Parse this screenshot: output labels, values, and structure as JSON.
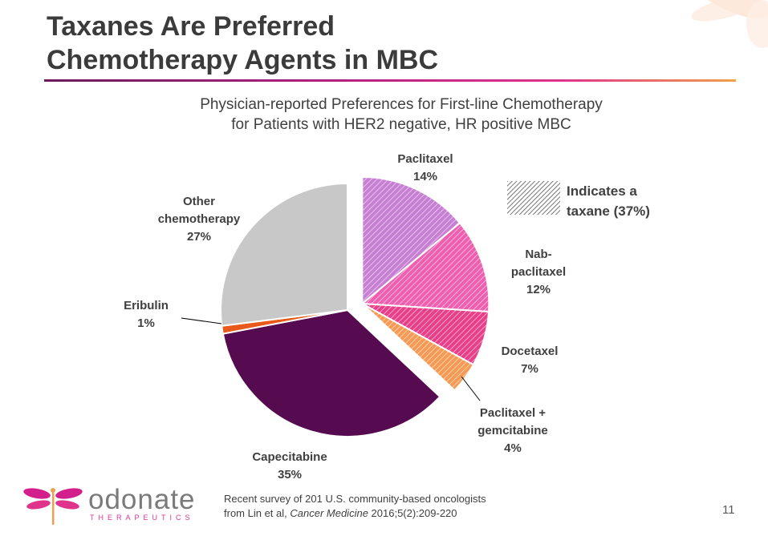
{
  "slide": {
    "title_line1": "Taxanes Are Preferred",
    "title_line2": "Chemotherapy Agents in MBC",
    "page_number": "11"
  },
  "chart_data": {
    "type": "pie",
    "title_line1": "Physician-reported Preferences for First-line Chemotherapy",
    "title_line2": "for Patients with HER2 negative, HR positive MBC",
    "slices": [
      {
        "label_lines": [
          "Paclitaxel",
          "14%"
        ],
        "value": 14,
        "taxane": true,
        "color": "#c77fd3"
      },
      {
        "label_lines": [
          "Nab-",
          "paclitaxel",
          "12%"
        ],
        "value": 12,
        "taxane": true,
        "color": "#ef5fb0"
      },
      {
        "label_lines": [
          "Docetaxel",
          "7%"
        ],
        "value": 7,
        "taxane": true,
        "color": "#e83f8a"
      },
      {
        "label_lines": [
          "Paclitaxel +",
          "gemcitabine",
          "4%"
        ],
        "value": 4,
        "taxane": true,
        "color": "#f59a55"
      },
      {
        "label_lines": [
          "Capecitabine",
          "35%"
        ],
        "value": 35,
        "taxane": false,
        "color": "#560b50"
      },
      {
        "label_lines": [
          "Eribulin",
          "1%"
        ],
        "value": 1,
        "taxane": false,
        "color": "#e8591a"
      },
      {
        "label_lines": [
          "Other",
          "chemotherapy",
          "27%"
        ],
        "value": 27,
        "taxane": false,
        "color": "#c8c8c8"
      }
    ],
    "legend": {
      "line1": "Indicates a",
      "line2": "taxane (37%)"
    }
  },
  "footnote": {
    "line1": "Recent survey of 201 U.S. community-based oncologists",
    "line2_prefix": "from Lin et al, ",
    "line2_journal": "Cancer Medicine",
    "line2_suffix": " 2016;5(2):209-220"
  },
  "logo": {
    "word": "odonate",
    "sub": "THERAPEUTICS"
  }
}
